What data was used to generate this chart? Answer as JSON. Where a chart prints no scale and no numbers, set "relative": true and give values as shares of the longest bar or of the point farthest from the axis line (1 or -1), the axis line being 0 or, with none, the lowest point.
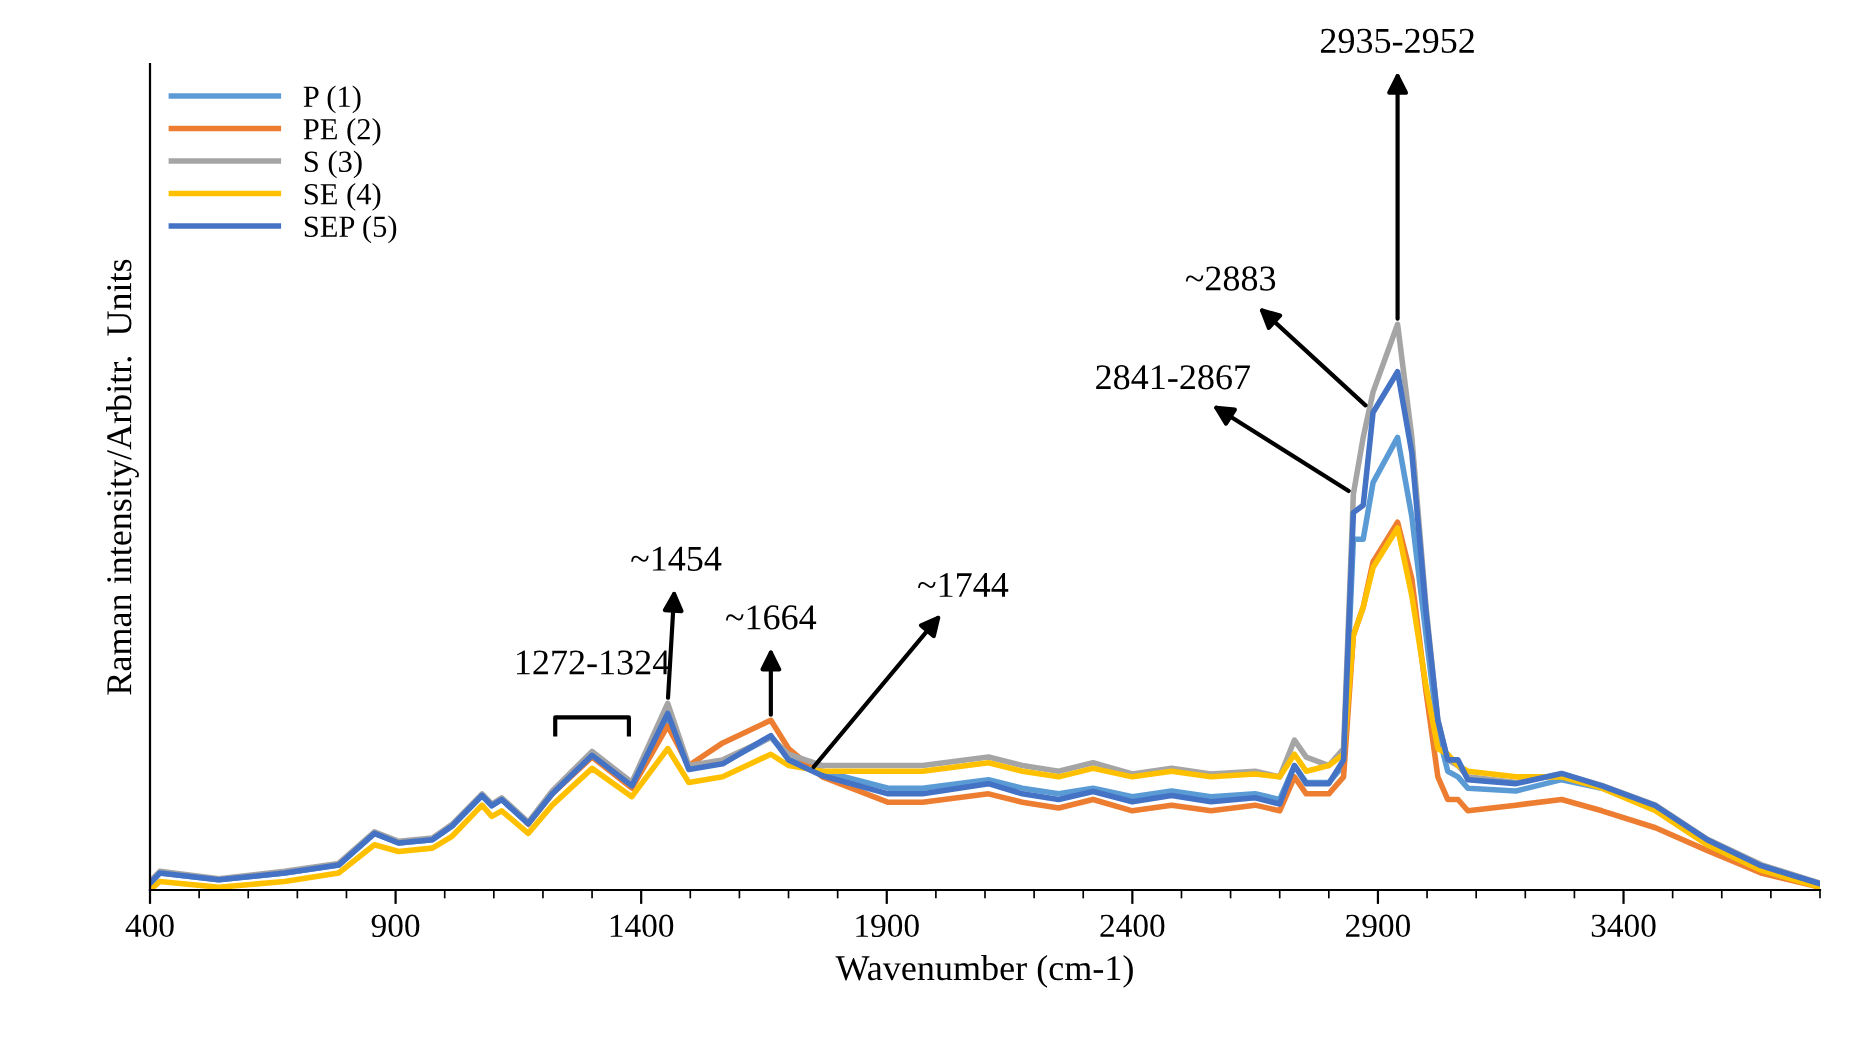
{
  "chart_data": {
    "type": "line",
    "relative": true,
    "xlabel": "Wavenumber (cm-1)",
    "ylabel": "Raman intensity/Arbitr.  Units",
    "x": [
      400,
      420,
      540,
      674,
      784,
      857,
      906,
      975,
      1015,
      1076,
      1096,
      1116,
      1170,
      1219,
      1300,
      1381,
      1454,
      1497,
      1566,
      1664,
      1700,
      1769,
      1903,
      1973,
      2107,
      2176,
      2250,
      2320,
      2400,
      2480,
      2560,
      2650,
      2700,
      2730,
      2754,
      2800,
      2830,
      2850,
      2870,
      2890,
      2940,
      2969,
      2998,
      3022,
      3042,
      3063,
      3083,
      3181,
      3274,
      3356,
      3465,
      3570,
      3680,
      3800
    ],
    "series": [
      {
        "name": "P (1)",
        "color": "#5b9bd5",
        "values": [
          0.012,
          0.03,
          0.018,
          0.03,
          0.044,
          0.1,
          0.083,
          0.089,
          0.113,
          0.167,
          0.149,
          0.16,
          0.117,
          0.17,
          0.24,
          0.19,
          0.3,
          0.215,
          0.225,
          0.27,
          0.235,
          0.21,
          0.18,
          0.18,
          0.195,
          0.18,
          0.17,
          0.18,
          0.165,
          0.175,
          0.165,
          0.17,
          0.16,
          0.22,
          0.19,
          0.19,
          0.22,
          0.62,
          0.62,
          0.72,
          0.8,
          0.66,
          0.45,
          0.28,
          0.21,
          0.2,
          0.18,
          0.175,
          0.195,
          0.18,
          0.145,
          0.085,
          0.04,
          0.01
        ]
      },
      {
        "name": "PE (2)",
        "color": "#ed7d31",
        "values": [
          null,
          null,
          null,
          null,
          null,
          null,
          null,
          null,
          null,
          null,
          null,
          null,
          0.117,
          0.17,
          0.235,
          0.18,
          0.29,
          0.22,
          0.26,
          0.3,
          0.25,
          0.2,
          0.155,
          0.155,
          0.17,
          0.155,
          0.145,
          0.16,
          0.14,
          0.15,
          0.14,
          0.15,
          0.14,
          0.2,
          0.17,
          0.17,
          0.2,
          0.45,
          0.5,
          0.58,
          0.65,
          0.55,
          0.35,
          0.2,
          0.16,
          0.16,
          0.14,
          0.15,
          0.16,
          0.14,
          0.11,
          0.07,
          0.03,
          0.005
        ]
      },
      {
        "name": "S (3)",
        "color": "#a5a5a5",
        "values": [
          0.015,
          0.033,
          0.02,
          0.033,
          0.047,
          0.103,
          0.086,
          0.092,
          0.116,
          0.17,
          0.152,
          0.163,
          0.12,
          0.175,
          0.245,
          0.19,
          0.33,
          0.22,
          0.23,
          0.27,
          0.24,
          0.22,
          0.22,
          0.22,
          0.235,
          0.22,
          0.21,
          0.225,
          0.205,
          0.215,
          0.205,
          0.21,
          0.2,
          0.265,
          0.235,
          0.22,
          0.25,
          0.7,
          0.8,
          0.88,
          1.0,
          0.8,
          0.5,
          0.3,
          0.23,
          0.22,
          0.2,
          0.19,
          0.205,
          0.185,
          0.15,
          0.09,
          0.045,
          0.012
        ]
      },
      {
        "name": "SE (4)",
        "color": "#ffc000",
        "values": [
          0.0,
          0.015,
          0.005,
          0.015,
          0.03,
          0.08,
          0.068,
          0.074,
          0.095,
          0.15,
          0.13,
          0.14,
          0.1,
          0.15,
          0.215,
          0.165,
          0.25,
          0.19,
          0.2,
          0.24,
          0.22,
          0.21,
          0.21,
          0.21,
          0.225,
          0.21,
          0.2,
          0.215,
          0.2,
          0.21,
          0.2,
          0.205,
          0.2,
          0.24,
          0.21,
          0.22,
          0.24,
          0.45,
          0.5,
          0.57,
          0.64,
          0.52,
          0.36,
          0.25,
          0.24,
          0.22,
          0.21,
          0.2,
          0.2,
          0.18,
          0.14,
          0.08,
          0.035,
          0.005
        ]
      },
      {
        "name": "SEP (5)",
        "color": "#4472c4",
        "values": [
          0.012,
          0.03,
          0.018,
          0.03,
          0.044,
          0.1,
          0.083,
          0.089,
          0.113,
          0.167,
          0.149,
          0.16,
          0.117,
          0.17,
          0.238,
          0.184,
          0.312,
          0.213,
          0.223,
          0.273,
          0.23,
          0.202,
          0.17,
          0.17,
          0.188,
          0.17,
          0.16,
          0.174,
          0.156,
          0.167,
          0.156,
          0.163,
          0.152,
          0.22,
          0.188,
          0.188,
          0.23,
          0.667,
          0.68,
          0.844,
          0.916,
          0.773,
          0.49,
          0.3,
          0.23,
          0.23,
          0.195,
          0.188,
          0.206,
          0.184,
          0.149,
          0.089,
          0.043,
          0.011
        ]
      }
    ],
    "annotations": [
      {
        "text": "1272-1324",
        "x": 1300,
        "y": 0.24
      },
      {
        "text": "~1454",
        "x": 1454,
        "y": 0.33
      },
      {
        "text": "~1664",
        "x": 1664,
        "y": 0.3
      },
      {
        "text": "~1744",
        "x": 1744,
        "y": 0.21
      },
      {
        "text": "2841-2867",
        "x": 2850,
        "y": 0.7
      },
      {
        "text": "~2883",
        "x": 2883,
        "y": 0.85
      },
      {
        "text": "2935-2952",
        "x": 2940,
        "y": 1.0
      }
    ],
    "xlim": [
      400,
      3800
    ],
    "xticks": [
      400,
      900,
      1400,
      1900,
      2400,
      2900,
      3400
    ],
    "grid": false,
    "legend": "top left",
    "line_style": "solid",
    "marker": "none"
  }
}
